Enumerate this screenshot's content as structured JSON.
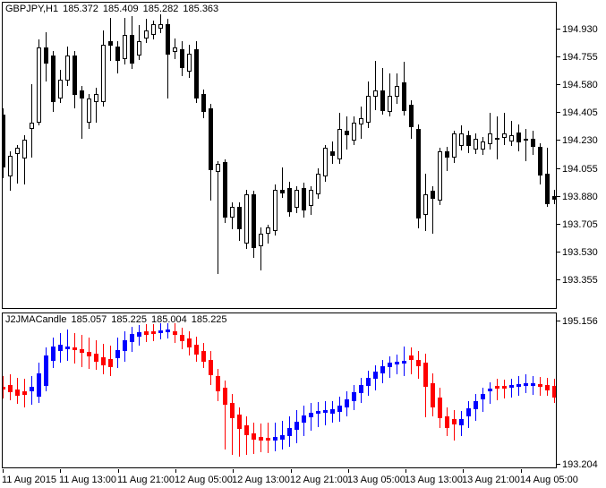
{
  "window_title": "GBPJPY,H1 Chart with J2JMACandle indicator",
  "colors": {
    "background": "#FFFFFF",
    "foreground": "#000000",
    "bull_body": "#FFFFFF",
    "bear_body": "#000000",
    "candle_outline": "#000000",
    "indicator_up": "#0000FF",
    "indicator_down": "#FF0000"
  },
  "main_chart": {
    "symbol_period": "GBPJPY,H1",
    "ohlc": {
      "open": "185.372",
      "high": "185.409",
      "low": "185.282",
      "close": "185.363"
    },
    "title": "GBPJPY,H1 185.372 185.409 185.282 185.363",
    "axis_labels": [
      "194.930",
      "194.755",
      "194.580",
      "194.405",
      "194.230",
      "194.055",
      "193.880",
      "193.705",
      "193.530",
      "193.355"
    ]
  },
  "indicator_chart": {
    "name": "J2JMACandle",
    "values": {
      "open": "185.057",
      "high": "185.225",
      "low": "185.004",
      "close": "185.225"
    },
    "title": "J2JMACandle 185.057 185.225 185.004 185.225",
    "axis_labels": [
      "195.156",
      "193.204"
    ]
  },
  "time_axis": {
    "labels": [
      "11 Aug 2015",
      "11 Aug 13:00",
      "11 Aug 21:00",
      "12 Aug 05:00",
      "12 Aug 13:00",
      "12 Aug 21:00",
      "13 Aug 05:00",
      "13 Aug 13:00",
      "13 Aug 21:00",
      "14 Aug 05:00"
    ]
  },
  "chart_data": [
    {
      "type": "candlestick",
      "panel": "main",
      "title": "GBPJPY,H1",
      "ylabel": "price",
      "ylim": [
        193.18,
        195.09
      ],
      "y_axis_ticks": [
        194.93,
        194.755,
        194.58,
        194.405,
        194.23,
        194.055,
        193.88,
        193.705,
        193.53,
        193.355
      ],
      "x_tick_labels": [
        "11 Aug 2015",
        "11 Aug 13:00",
        "11 Aug 21:00",
        "12 Aug 05:00",
        "12 Aug 13:00",
        "12 Aug 21:00",
        "13 Aug 05:00",
        "13 Aug 13:00",
        "13 Aug 21:00",
        "14 Aug 05:00"
      ],
      "x_tick_candle_index": [
        0,
        8,
        16,
        24,
        32,
        40,
        48,
        56,
        64,
        72
      ],
      "grid": false,
      "legend": false,
      "candles_ohlc": [
        [
          194.39,
          194.43,
          193.99,
          194.06
        ],
        [
          194.0,
          194.16,
          193.91,
          194.13
        ],
        [
          194.14,
          194.2,
          193.96,
          194.18
        ],
        [
          194.11,
          194.26,
          193.95,
          194.23
        ],
        [
          194.3,
          194.58,
          194.12,
          194.34
        ],
        [
          194.34,
          194.86,
          194.32,
          194.81
        ],
        [
          194.81,
          194.91,
          194.6,
          194.71
        ],
        [
          194.76,
          194.79,
          194.41,
          194.47
        ],
        [
          194.49,
          194.67,
          194.46,
          194.61
        ],
        [
          194.6,
          194.82,
          194.57,
          194.76
        ],
        [
          194.76,
          194.79,
          194.43,
          194.51
        ],
        [
          194.54,
          194.57,
          194.24,
          194.49
        ],
        [
          194.34,
          194.52,
          194.3,
          194.49
        ],
        [
          194.47,
          194.56,
          194.34,
          194.52
        ],
        [
          194.47,
          194.92,
          194.44,
          194.83
        ],
        [
          194.85,
          195.0,
          194.73,
          194.82
        ],
        [
          194.82,
          194.85,
          194.65,
          194.73
        ],
        [
          194.74,
          195.0,
          194.71,
          194.89
        ],
        [
          194.89,
          195.01,
          194.68,
          194.71
        ],
        [
          194.76,
          194.95,
          194.73,
          194.85
        ],
        [
          194.87,
          194.99,
          194.84,
          194.92
        ],
        [
          194.89,
          194.98,
          194.86,
          194.96
        ],
        [
          194.93,
          195.02,
          194.9,
          194.96
        ],
        [
          194.96,
          194.99,
          194.49,
          194.77
        ],
        [
          194.78,
          194.87,
          194.74,
          194.81
        ],
        [
          194.8,
          194.85,
          194.63,
          194.68
        ],
        [
          194.66,
          194.83,
          194.62,
          194.77
        ],
        [
          194.8,
          194.85,
          194.46,
          194.49
        ],
        [
          194.52,
          194.55,
          194.37,
          194.41
        ],
        [
          194.43,
          194.46,
          193.85,
          194.04
        ],
        [
          194.03,
          194.1,
          193.39,
          194.08
        ],
        [
          194.09,
          194.11,
          193.71,
          193.74
        ],
        [
          193.74,
          193.84,
          193.67,
          193.81
        ],
        [
          193.81,
          193.84,
          193.6,
          193.67
        ],
        [
          193.58,
          193.92,
          193.55,
          193.89
        ],
        [
          193.89,
          193.91,
          193.49,
          193.55
        ],
        [
          193.56,
          193.68,
          193.41,
          193.64
        ],
        [
          193.64,
          193.7,
          193.58,
          193.68
        ],
        [
          193.66,
          193.95,
          193.63,
          193.92
        ],
        [
          193.92,
          194.06,
          193.87,
          193.9
        ],
        [
          193.93,
          193.97,
          193.75,
          193.78
        ],
        [
          193.81,
          193.94,
          193.77,
          193.92
        ],
        [
          193.93,
          193.96,
          193.74,
          193.79
        ],
        [
          193.82,
          193.94,
          193.76,
          193.92
        ],
        [
          193.89,
          194.05,
          193.86,
          194.02
        ],
        [
          194.0,
          194.2,
          193.97,
          194.18
        ],
        [
          194.16,
          194.22,
          194.08,
          194.13
        ],
        [
          194.11,
          194.4,
          194.08,
          194.3
        ],
        [
          194.29,
          194.38,
          194.17,
          194.26
        ],
        [
          194.23,
          194.38,
          194.2,
          194.34
        ],
        [
          194.33,
          194.44,
          194.24,
          194.37
        ],
        [
          194.34,
          194.6,
          194.31,
          194.51
        ],
        [
          194.5,
          194.73,
          194.42,
          194.54
        ],
        [
          194.54,
          194.68,
          194.39,
          194.41
        ],
        [
          194.41,
          194.65,
          194.38,
          194.51
        ],
        [
          194.5,
          194.65,
          194.46,
          194.57
        ],
        [
          194.59,
          194.72,
          194.38,
          194.41
        ],
        [
          194.45,
          194.48,
          194.24,
          194.31
        ],
        [
          194.3,
          194.33,
          193.68,
          193.74
        ],
        [
          193.76,
          194.02,
          193.66,
          193.89
        ],
        [
          193.91,
          193.94,
          193.64,
          193.86
        ],
        [
          193.85,
          194.18,
          193.82,
          194.16
        ],
        [
          194.16,
          194.19,
          194.04,
          194.12
        ],
        [
          194.12,
          194.29,
          194.09,
          194.27
        ],
        [
          194.19,
          194.32,
          194.16,
          194.27
        ],
        [
          194.26,
          194.29,
          194.15,
          194.19
        ],
        [
          194.17,
          194.27,
          194.14,
          194.24
        ],
        [
          194.17,
          194.25,
          194.14,
          194.22
        ],
        [
          194.2,
          194.4,
          194.17,
          194.27
        ],
        [
          194.24,
          194.38,
          194.11,
          194.245
        ],
        [
          194.24,
          194.4,
          194.2,
          194.27
        ],
        [
          194.22,
          194.35,
          194.19,
          194.26
        ],
        [
          194.28,
          194.33,
          194.16,
          194.22
        ],
        [
          194.24,
          194.3,
          194.1,
          194.23
        ],
        [
          194.24,
          194.29,
          194.14,
          194.19
        ],
        [
          194.19,
          194.21,
          193.95,
          194.01
        ],
        [
          194.02,
          194.18,
          193.81,
          193.83
        ],
        [
          193.88,
          193.92,
          193.83,
          193.86
        ]
      ]
    },
    {
      "type": "candlestick",
      "panel": "indicator",
      "title": "J2JMACandle",
      "ylim": [
        193.204,
        195.156
      ],
      "y_axis_ticks": [
        195.156,
        193.204
      ],
      "grid": false,
      "legend": false,
      "candles_ohlc_color": [
        [
          194.23,
          194.37,
          194.08,
          194.19,
          "red"
        ],
        [
          194.25,
          194.39,
          194.05,
          194.16,
          "red"
        ],
        [
          194.19,
          194.34,
          194.0,
          194.11,
          "red"
        ],
        [
          194.17,
          194.33,
          193.96,
          194.12,
          "red"
        ],
        [
          194.17,
          194.37,
          194.0,
          194.23,
          "blue"
        ],
        [
          194.1,
          194.54,
          194.02,
          194.4,
          "blue"
        ],
        [
          194.23,
          194.74,
          194.17,
          194.63,
          "blue"
        ],
        [
          194.56,
          194.87,
          194.48,
          194.75,
          "blue"
        ],
        [
          194.69,
          194.92,
          194.54,
          194.77,
          "blue"
        ],
        [
          194.71,
          194.97,
          194.56,
          194.75,
          "blue"
        ],
        [
          194.74,
          194.92,
          194.52,
          194.7,
          "red"
        ],
        [
          194.71,
          194.9,
          194.48,
          194.66,
          "red"
        ],
        [
          194.68,
          194.87,
          194.46,
          194.62,
          "red"
        ],
        [
          194.66,
          194.83,
          194.45,
          194.56,
          "red"
        ],
        [
          194.61,
          194.78,
          194.39,
          194.51,
          "red"
        ],
        [
          194.59,
          194.76,
          194.37,
          194.48,
          "red"
        ],
        [
          194.59,
          194.87,
          194.47,
          194.7,
          "blue"
        ],
        [
          194.69,
          194.95,
          194.56,
          194.83,
          "blue"
        ],
        [
          194.81,
          195.0,
          194.67,
          194.91,
          "blue"
        ],
        [
          194.88,
          195.03,
          194.76,
          194.94,
          "blue"
        ],
        [
          194.95,
          195.04,
          194.81,
          194.9,
          "red"
        ],
        [
          194.95,
          195.04,
          194.82,
          194.91,
          "red"
        ],
        [
          194.92,
          195.05,
          194.84,
          194.96,
          "blue"
        ],
        [
          194.94,
          195.05,
          194.85,
          194.97,
          "blue"
        ],
        [
          194.95,
          195.05,
          194.8,
          194.9,
          "red"
        ],
        [
          194.9,
          194.99,
          194.71,
          194.82,
          "red"
        ],
        [
          194.85,
          194.95,
          194.64,
          194.73,
          "red"
        ],
        [
          194.77,
          194.88,
          194.56,
          194.64,
          "red"
        ],
        [
          194.69,
          194.8,
          194.48,
          194.55,
          "red"
        ],
        [
          194.57,
          194.69,
          194.25,
          194.37,
          "red"
        ],
        [
          194.37,
          194.46,
          194.04,
          194.17,
          "red"
        ],
        [
          194.21,
          194.31,
          193.41,
          193.99,
          "red"
        ],
        [
          194.02,
          194.13,
          193.34,
          193.82,
          "red"
        ],
        [
          193.87,
          193.96,
          193.32,
          193.68,
          "red"
        ],
        [
          193.73,
          193.84,
          193.34,
          193.6,
          "red"
        ],
        [
          193.62,
          193.76,
          193.35,
          193.54,
          "red"
        ],
        [
          193.58,
          193.75,
          193.38,
          193.53,
          "red"
        ],
        [
          193.56,
          193.76,
          193.37,
          193.53,
          "red"
        ],
        [
          193.53,
          193.76,
          193.39,
          193.58,
          "blue"
        ],
        [
          193.54,
          193.78,
          193.41,
          193.6,
          "blue"
        ],
        [
          193.59,
          193.84,
          193.44,
          193.69,
          "blue"
        ],
        [
          193.67,
          193.92,
          193.49,
          193.77,
          "blue"
        ],
        [
          193.76,
          193.98,
          193.58,
          193.85,
          "blue"
        ],
        [
          193.83,
          194.02,
          193.66,
          193.89,
          "blue"
        ],
        [
          193.87,
          194.03,
          193.7,
          193.91,
          "blue"
        ],
        [
          193.88,
          194.04,
          193.73,
          193.92,
          "blue"
        ],
        [
          193.88,
          194.04,
          193.76,
          193.94,
          "blue"
        ],
        [
          193.9,
          194.1,
          193.78,
          193.98,
          "blue"
        ],
        [
          193.96,
          194.17,
          193.84,
          194.06,
          "blue"
        ],
        [
          194.04,
          194.25,
          193.92,
          194.16,
          "blue"
        ],
        [
          194.14,
          194.34,
          194.02,
          194.25,
          "blue"
        ],
        [
          194.24,
          194.44,
          194.11,
          194.34,
          "blue"
        ],
        [
          194.33,
          194.51,
          194.19,
          194.42,
          "blue"
        ],
        [
          194.4,
          194.57,
          194.27,
          194.49,
          "blue"
        ],
        [
          194.48,
          194.62,
          194.34,
          194.54,
          "blue"
        ],
        [
          194.52,
          194.64,
          194.38,
          194.55,
          "blue"
        ],
        [
          194.52,
          194.75,
          194.37,
          194.56,
          "blue"
        ],
        [
          194.63,
          194.74,
          194.39,
          194.57,
          "red"
        ],
        [
          194.57,
          194.69,
          194.33,
          194.49,
          "red"
        ],
        [
          194.54,
          194.66,
          193.84,
          194.23,
          "red"
        ],
        [
          194.27,
          194.4,
          193.84,
          193.96,
          "red"
        ],
        [
          194.09,
          194.21,
          193.69,
          193.82,
          "red"
        ],
        [
          193.84,
          193.96,
          193.59,
          193.69,
          "red"
        ],
        [
          193.81,
          193.92,
          193.53,
          193.74,
          "red"
        ],
        [
          193.73,
          193.91,
          193.58,
          193.81,
          "blue"
        ],
        [
          193.84,
          194.04,
          193.69,
          193.95,
          "blue"
        ],
        [
          193.94,
          194.13,
          193.78,
          194.04,
          "blue"
        ],
        [
          194.06,
          194.21,
          193.9,
          194.13,
          "blue"
        ],
        [
          194.16,
          194.28,
          194.0,
          194.2,
          "blue"
        ],
        [
          194.24,
          194.33,
          194.05,
          194.2,
          "red"
        ],
        [
          194.24,
          194.32,
          194.08,
          194.2,
          "red"
        ],
        [
          194.21,
          194.33,
          194.09,
          194.25,
          "blue"
        ],
        [
          194.23,
          194.37,
          194.12,
          194.26,
          "blue"
        ],
        [
          194.24,
          194.39,
          194.15,
          194.27,
          "blue"
        ],
        [
          194.23,
          194.37,
          194.13,
          194.27,
          "blue"
        ],
        [
          194.26,
          194.36,
          194.12,
          194.23,
          "red"
        ],
        [
          194.25,
          194.34,
          194.11,
          194.18,
          "red"
        ],
        [
          194.24,
          194.33,
          194.02,
          194.09,
          "red"
        ]
      ]
    }
  ]
}
